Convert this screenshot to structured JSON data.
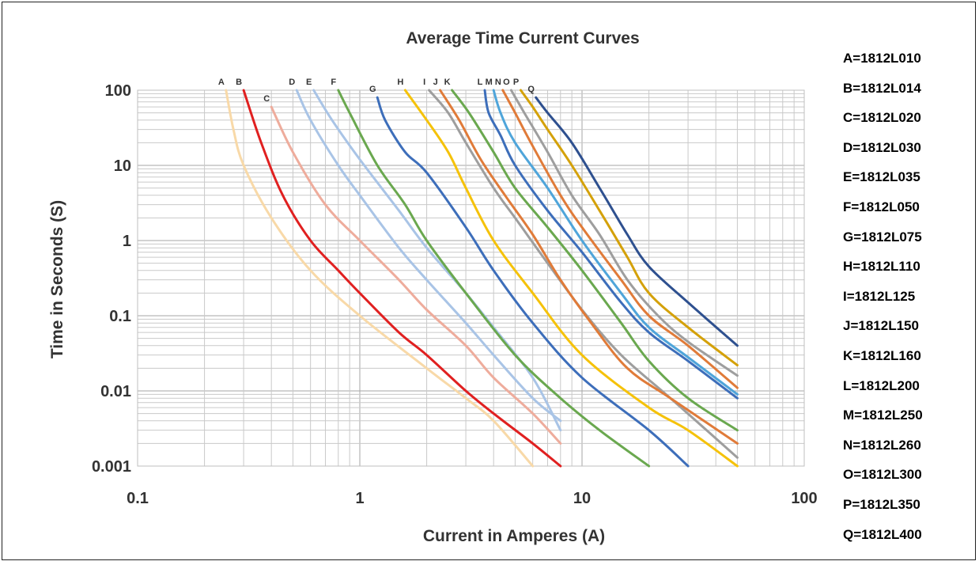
{
  "chart_data": {
    "type": "line",
    "title": "Average Time Current Curves",
    "xlabel": "Current in Amperes (A)",
    "ylabel": "Time in Seconds (S)",
    "x_scale": "log",
    "y_scale": "log",
    "xlim": [
      0.1,
      100
    ],
    "ylim": [
      0.001,
      100
    ],
    "x_ticks": [
      "0.1",
      "1",
      "10",
      "100"
    ],
    "y_ticks": [
      "100",
      "10",
      "1",
      "0.1",
      "0.01",
      "0.001"
    ],
    "grid": true,
    "legend_position": "right",
    "legend": [
      "A=1812L010",
      "B=1812L014",
      "C=1812L020",
      "D=1812L030",
      "E=1812L035",
      "F=1812L050",
      "G=1812L075",
      "H=1812L110",
      "I=1812L125",
      "J=1812L150",
      "K=1812L160",
      "L=1812L200",
      "M=1812L250",
      "N=1812L260",
      "O=1812L300",
      "P=1812L350",
      "Q=1812L400"
    ],
    "series": [
      {
        "name": "A",
        "color": "#F8D9A8",
        "points": [
          [
            0.25,
            100
          ],
          [
            0.27,
            30
          ],
          [
            0.3,
            10
          ],
          [
            0.4,
            2
          ],
          [
            0.6,
            0.4
          ],
          [
            1,
            0.1
          ],
          [
            2,
            0.02
          ],
          [
            3,
            0.008
          ],
          [
            4,
            0.004
          ],
          [
            6,
            0.001
          ]
        ]
      },
      {
        "name": "B",
        "color": "#E02020",
        "points": [
          [
            0.3,
            100
          ],
          [
            0.36,
            20
          ],
          [
            0.45,
            4
          ],
          [
            0.6,
            1
          ],
          [
            0.8,
            0.4
          ],
          [
            1,
            0.2
          ],
          [
            1.5,
            0.06
          ],
          [
            2,
            0.03
          ],
          [
            3,
            0.01
          ],
          [
            4,
            0.005
          ],
          [
            6,
            0.002
          ],
          [
            8,
            0.001
          ]
        ]
      },
      {
        "name": "C",
        "color": "#EEAC9C",
        "points": [
          [
            0.4,
            60
          ],
          [
            0.5,
            15
          ],
          [
            0.7,
            3
          ],
          [
            1,
            1
          ],
          [
            1.5,
            0.3
          ],
          [
            2,
            0.12
          ],
          [
            3,
            0.04
          ],
          [
            4,
            0.015
          ],
          [
            6,
            0.005
          ],
          [
            8,
            0.002
          ]
        ]
      },
      {
        "name": "D",
        "color": "#A9C4E6",
        "points": [
          [
            0.52,
            100
          ],
          [
            0.6,
            40
          ],
          [
            0.8,
            10
          ],
          [
            1,
            4
          ],
          [
            1.5,
            0.8
          ],
          [
            2,
            0.3
          ],
          [
            3,
            0.08
          ],
          [
            4,
            0.03
          ],
          [
            6,
            0.008
          ],
          [
            8,
            0.004
          ]
        ]
      },
      {
        "name": "E",
        "color": "#A9C4E6",
        "points": [
          [
            0.62,
            100
          ],
          [
            0.75,
            40
          ],
          [
            1,
            12
          ],
          [
            1.5,
            2.5
          ],
          [
            2,
            0.8
          ],
          [
            3,
            0.2
          ],
          [
            4,
            0.07
          ],
          [
            6,
            0.015
          ],
          [
            8,
            0.003
          ]
        ]
      },
      {
        "name": "F",
        "color": "#6AA84F",
        "points": [
          [
            0.8,
            100
          ],
          [
            0.9,
            50
          ],
          [
            1.2,
            10
          ],
          [
            1.6,
            3
          ],
          [
            2,
            1
          ],
          [
            3,
            0.2
          ],
          [
            5,
            0.03
          ],
          [
            8,
            0.008
          ],
          [
            12,
            0.003
          ],
          [
            20,
            0.001
          ]
        ]
      },
      {
        "name": "G",
        "color": "#3D6EBA",
        "points": [
          [
            1.2,
            80
          ],
          [
            1.3,
            40
          ],
          [
            1.6,
            15
          ],
          [
            2,
            8
          ],
          [
            3,
            1.5
          ],
          [
            4,
            0.4
          ],
          [
            6,
            0.08
          ],
          [
            10,
            0.015
          ],
          [
            20,
            0.003
          ],
          [
            30,
            0.001
          ]
        ]
      },
      {
        "name": "H",
        "color": "#F5C20A",
        "points": [
          [
            1.6,
            100
          ],
          [
            2,
            40
          ],
          [
            2.5,
            15
          ],
          [
            3,
            5
          ],
          [
            4,
            1
          ],
          [
            6,
            0.2
          ],
          [
            10,
            0.03
          ],
          [
            20,
            0.006
          ],
          [
            30,
            0.003
          ],
          [
            50,
            0.001
          ]
        ]
      },
      {
        "name": "I",
        "color": "#9E9E9E",
        "points": [
          [
            2.05,
            100
          ],
          [
            2.5,
            50
          ],
          [
            3,
            20
          ],
          [
            4,
            5
          ],
          [
            5,
            2
          ],
          [
            7,
            0.5
          ],
          [
            10,
            0.12
          ],
          [
            15,
            0.03
          ],
          [
            25,
            0.008
          ],
          [
            50,
            0.0013
          ]
        ]
      },
      {
        "name": "J",
        "color": "#E07B39",
        "points": [
          [
            2.3,
            100
          ],
          [
            2.8,
            40
          ],
          [
            3.5,
            12
          ],
          [
            4.5,
            4
          ],
          [
            6,
            1.2
          ],
          [
            8,
            0.3
          ],
          [
            11,
            0.08
          ],
          [
            16,
            0.02
          ],
          [
            25,
            0.008
          ],
          [
            50,
            0.002
          ]
        ]
      },
      {
        "name": "K",
        "color": "#6AA84F",
        "points": [
          [
            2.6,
            100
          ],
          [
            3.1,
            50
          ],
          [
            4,
            15
          ],
          [
            5,
            5
          ],
          [
            7,
            1.5
          ],
          [
            10,
            0.4
          ],
          [
            15,
            0.08
          ],
          [
            20,
            0.025
          ],
          [
            30,
            0.008
          ],
          [
            50,
            0.003
          ]
        ]
      },
      {
        "name": "L",
        "color": "#3D6EBA",
        "points": [
          [
            3.65,
            100
          ],
          [
            3.8,
            50
          ],
          [
            4.3,
            25
          ],
          [
            5,
            10
          ],
          [
            7,
            2.5
          ],
          [
            10,
            0.7
          ],
          [
            15,
            0.15
          ],
          [
            20,
            0.06
          ],
          [
            30,
            0.025
          ],
          [
            50,
            0.008
          ]
        ]
      },
      {
        "name": "M",
        "color": "#4FA5DA",
        "points": [
          [
            4.0,
            100
          ],
          [
            4.3,
            50
          ],
          [
            5,
            20
          ],
          [
            7,
            5
          ],
          [
            10,
            1
          ],
          [
            15,
            0.2
          ],
          [
            20,
            0.07
          ],
          [
            30,
            0.028
          ],
          [
            50,
            0.009
          ]
        ]
      },
      {
        "name": "N",
        "color": "#E07B39",
        "points": [
          [
            4.4,
            100
          ],
          [
            5,
            50
          ],
          [
            6,
            18
          ],
          [
            8,
            4
          ],
          [
            10,
            1.5
          ],
          [
            15,
            0.3
          ],
          [
            20,
            0.1
          ],
          [
            30,
            0.04
          ],
          [
            50,
            0.011
          ]
        ]
      },
      {
        "name": "O",
        "color": "#9E9E9E",
        "points": [
          [
            4.8,
            100
          ],
          [
            5.5,
            50
          ],
          [
            7,
            15
          ],
          [
            9,
            4
          ],
          [
            12,
            1.2
          ],
          [
            16,
            0.3
          ],
          [
            22,
            0.1
          ],
          [
            30,
            0.045
          ],
          [
            50,
            0.016
          ]
        ]
      },
      {
        "name": "P",
        "color": "#D4A10A",
        "points": [
          [
            5.3,
            100
          ],
          [
            6,
            60
          ],
          [
            7,
            30
          ],
          [
            9,
            10
          ],
          [
            12,
            2.5
          ],
          [
            16,
            0.6
          ],
          [
            20,
            0.2
          ],
          [
            30,
            0.07
          ],
          [
            50,
            0.022
          ]
        ]
      },
      {
        "name": "Q",
        "color": "#2E508F",
        "points": [
          [
            6.2,
            80
          ],
          [
            7,
            50
          ],
          [
            9,
            20
          ],
          [
            12,
            5
          ],
          [
            16,
            1.2
          ],
          [
            20,
            0.45
          ],
          [
            30,
            0.15
          ],
          [
            50,
            0.04
          ]
        ]
      }
    ]
  }
}
